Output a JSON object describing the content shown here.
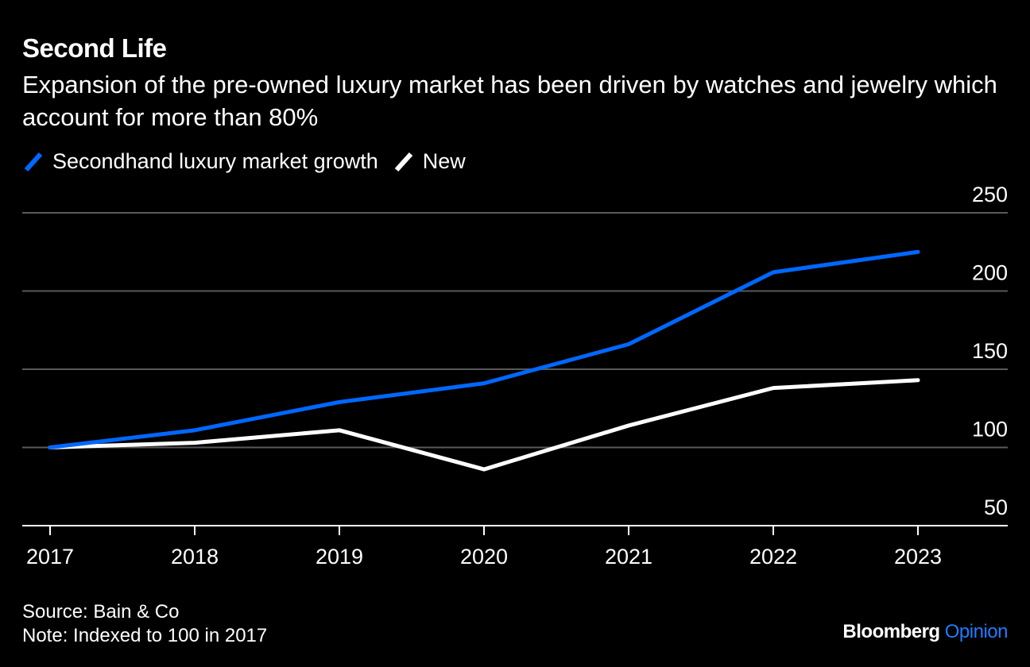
{
  "title": "Second Life",
  "subtitle": "Expansion of the pre-owned luxury market has been driven by watches and jewelry which account for more than 80%",
  "colors": {
    "background": "#000000",
    "secondhand": "#0068ff",
    "new": "#ffffff",
    "gridline": "#5a5a5a",
    "text": "#ffffff",
    "brand_accent": "#1f7bff"
  },
  "legend": {
    "secondhand_label": "Secondhand luxury market growth",
    "new_label": "New"
  },
  "footer": {
    "source": "Source: Bain & Co",
    "note": "Note: Indexed to 100 in 2017"
  },
  "brand": {
    "name": "Bloomberg",
    "section": "Opinion"
  },
  "chart_data": {
    "type": "line",
    "title": "Second Life",
    "xlabel": "",
    "ylabel": "",
    "x": [
      "2017",
      "2018",
      "2019",
      "2020",
      "2021",
      "2022",
      "2023"
    ],
    "ylim": [
      50,
      250
    ],
    "yticks": [
      50,
      100,
      150,
      200,
      250
    ],
    "grid": true,
    "legend_position": "top-left",
    "series": [
      {
        "name": "Secondhand luxury market growth",
        "color": "#0068ff",
        "values": [
          100,
          111,
          129,
          141,
          166,
          212,
          225
        ]
      },
      {
        "name": "New",
        "color": "#ffffff",
        "values": [
          100,
          103,
          111,
          86,
          114,
          138,
          143
        ]
      }
    ]
  }
}
